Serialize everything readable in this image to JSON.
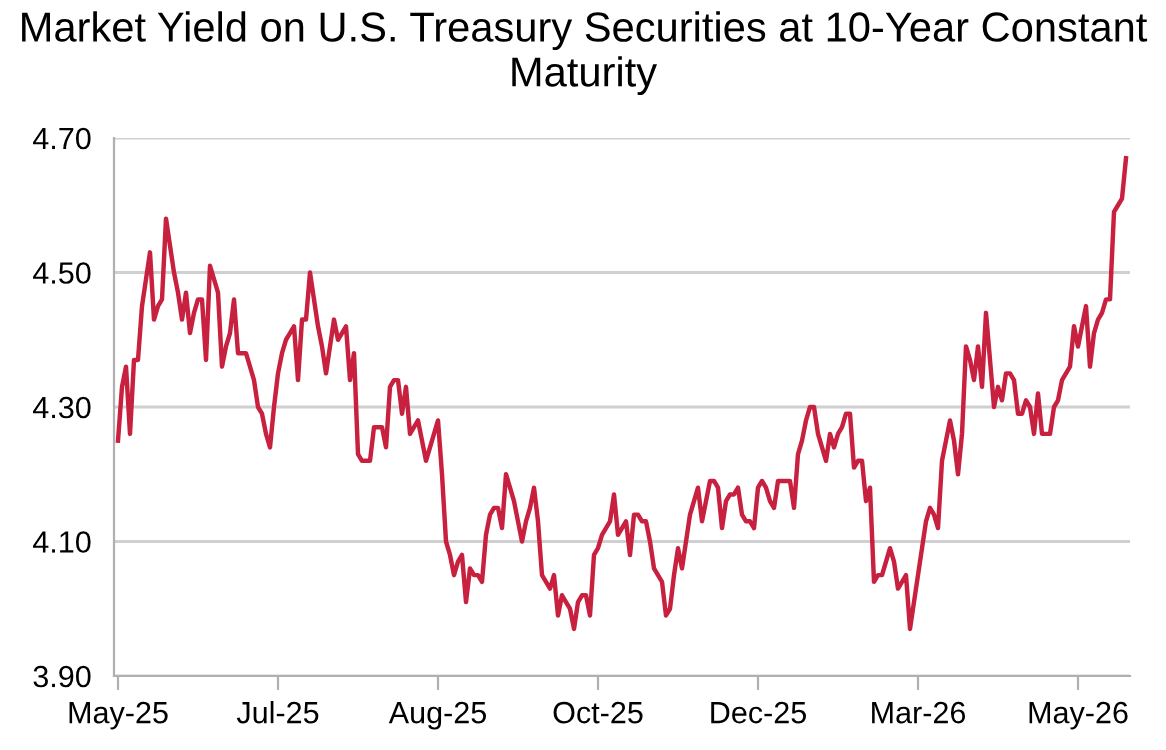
{
  "chart_data": {
    "type": "line",
    "title": "Market Yield on U.S. Treasury Securities at 10-Year Constant Maturity",
    "categories": [
      "May-25",
      null,
      null,
      null,
      null,
      null,
      null,
      null,
      null,
      null,
      null,
      null,
      null,
      null,
      null,
      null,
      null,
      null,
      null,
      null,
      null,
      null,
      null,
      null,
      null,
      null,
      null,
      null,
      null,
      null,
      null,
      null,
      null,
      null,
      null,
      null,
      null,
      null,
      null,
      null,
      "Jul-25",
      null,
      null,
      null,
      null,
      null,
      null,
      null,
      null,
      null,
      null,
      null,
      null,
      null,
      null,
      null,
      null,
      null,
      null,
      null,
      null,
      null,
      null,
      null,
      null,
      null,
      null,
      null,
      null,
      null,
      null,
      null,
      null,
      null,
      null,
      null,
      null,
      null,
      null,
      null,
      "Aug-25",
      null,
      null,
      null,
      null,
      null,
      null,
      null,
      null,
      null,
      null,
      null,
      null,
      null,
      null,
      null,
      null,
      null,
      null,
      null,
      null,
      null,
      null,
      null,
      null,
      null,
      null,
      null,
      null,
      null,
      null,
      null,
      null,
      null,
      null,
      null,
      null,
      null,
      null,
      null,
      "Oct-25",
      null,
      null,
      null,
      null,
      null,
      null,
      null,
      null,
      null,
      null,
      null,
      null,
      null,
      null,
      null,
      null,
      null,
      null,
      null,
      null,
      null,
      null,
      null,
      null,
      null,
      null,
      null,
      null,
      null,
      null,
      null,
      null,
      null,
      null,
      null,
      null,
      null,
      null,
      null,
      "Dec-25",
      null,
      null,
      null,
      null,
      null,
      null,
      null,
      null,
      null,
      null,
      null,
      null,
      null,
      null,
      null,
      null,
      null,
      null,
      null,
      null,
      null,
      null,
      null,
      null,
      null,
      null,
      null,
      null,
      null,
      null,
      null,
      null,
      null,
      null,
      null,
      null,
      null,
      null,
      null,
      "Mar-26",
      null,
      null,
      null,
      null,
      null,
      null,
      null,
      null,
      null,
      null,
      null,
      null,
      null,
      null,
      null,
      null,
      null,
      null,
      null,
      null,
      null,
      null,
      null,
      null,
      null,
      null,
      null,
      null,
      null,
      null,
      null,
      null,
      null,
      null,
      null,
      null,
      null,
      null,
      null,
      "May-26",
      null,
      null,
      null,
      null,
      null,
      null,
      null,
      null,
      null,
      null,
      null,
      null
    ],
    "series": [
      {
        "color": "#c8203f",
        "values": [
          4.25,
          4.33,
          4.36,
          4.26,
          4.37,
          4.37,
          4.45,
          4.49,
          4.53,
          4.43,
          4.45,
          4.46,
          4.58,
          4.54,
          4.5,
          4.47,
          4.43,
          4.47,
          4.41,
          4.44,
          4.46,
          4.46,
          4.37,
          4.51,
          4.49,
          4.47,
          4.36,
          4.39,
          4.41,
          4.46,
          4.38,
          4.38,
          4.38,
          4.36,
          4.34,
          4.3,
          4.29,
          4.26,
          4.24,
          4.3,
          4.35,
          4.38,
          4.4,
          4.41,
          4.42,
          4.34,
          4.43,
          4.43,
          4.5,
          4.46,
          4.42,
          4.39,
          4.35,
          4.39,
          4.43,
          4.4,
          4.41,
          4.42,
          4.34,
          4.38,
          4.23,
          4.22,
          4.22,
          4.22,
          4.27,
          4.27,
          4.27,
          4.24,
          4.33,
          4.34,
          4.34,
          4.29,
          4.33,
          4.26,
          4.27,
          4.28,
          4.25,
          4.22,
          4.24,
          4.26,
          4.28,
          4.2,
          4.1,
          4.08,
          4.05,
          4.07,
          4.08,
          4.01,
          4.06,
          4.05,
          4.05,
          4.04,
          4.11,
          4.14,
          4.15,
          4.15,
          4.12,
          4.2,
          4.18,
          4.16,
          4.13,
          4.1,
          4.13,
          4.15,
          4.18,
          4.13,
          4.05,
          4.04,
          4.03,
          4.05,
          3.99,
          4.02,
          4.01,
          4.0,
          3.97,
          4.01,
          4.02,
          4.02,
          3.99,
          4.08,
          4.09,
          4.11,
          4.12,
          4.13,
          4.17,
          4.11,
          4.12,
          4.13,
          4.08,
          4.14,
          4.14,
          4.13,
          4.13,
          4.1,
          4.06,
          4.05,
          4.04,
          3.99,
          4.0,
          4.05,
          4.09,
          4.06,
          4.1,
          4.14,
          4.16,
          4.18,
          4.13,
          4.16,
          4.19,
          4.19,
          4.18,
          4.12,
          4.16,
          4.17,
          4.17,
          4.18,
          4.14,
          4.13,
          4.13,
          4.12,
          4.18,
          4.19,
          4.18,
          4.16,
          4.15,
          4.19,
          4.19,
          4.19,
          4.19,
          4.15,
          4.23,
          4.25,
          4.28,
          4.3,
          4.3,
          4.26,
          4.24,
          4.22,
          4.26,
          4.24,
          4.26,
          4.27,
          4.29,
          4.29,
          4.21,
          4.22,
          4.22,
          4.16,
          4.18,
          4.04,
          4.05,
          4.05,
          4.07,
          4.09,
          4.07,
          4.03,
          4.04,
          4.05,
          3.97,
          4.01,
          4.05,
          4.09,
          4.13,
          4.15,
          4.14,
          4.12,
          4.22,
          4.25,
          4.28,
          4.25,
          4.2,
          4.26,
          4.39,
          4.37,
          4.34,
          4.39,
          4.33,
          4.44,
          4.37,
          4.3,
          4.33,
          4.31,
          4.35,
          4.35,
          4.34,
          4.29,
          4.29,
          4.31,
          4.3,
          4.26,
          4.32,
          4.26,
          4.26,
          4.26,
          4.3,
          4.31,
          4.34,
          4.35,
          4.36,
          4.42,
          4.39,
          4.42,
          4.45,
          4.36,
          4.41,
          4.43,
          4.44,
          4.46,
          4.46,
          4.59,
          4.6,
          4.61,
          4.67
        ]
      }
    ],
    "ylim": [
      3.9,
      4.7
    ],
    "yticks": [
      {
        "value": 3.9,
        "label": "3.90"
      },
      {
        "value": 4.1,
        "label": "4.10"
      },
      {
        "value": 4.3,
        "label": "4.30"
      },
      {
        "value": 4.5,
        "label": "4.50"
      },
      {
        "value": 4.7,
        "label": "4.70"
      }
    ],
    "grid": "y",
    "legend": false,
    "marker": "none",
    "line_style": "solid"
  }
}
